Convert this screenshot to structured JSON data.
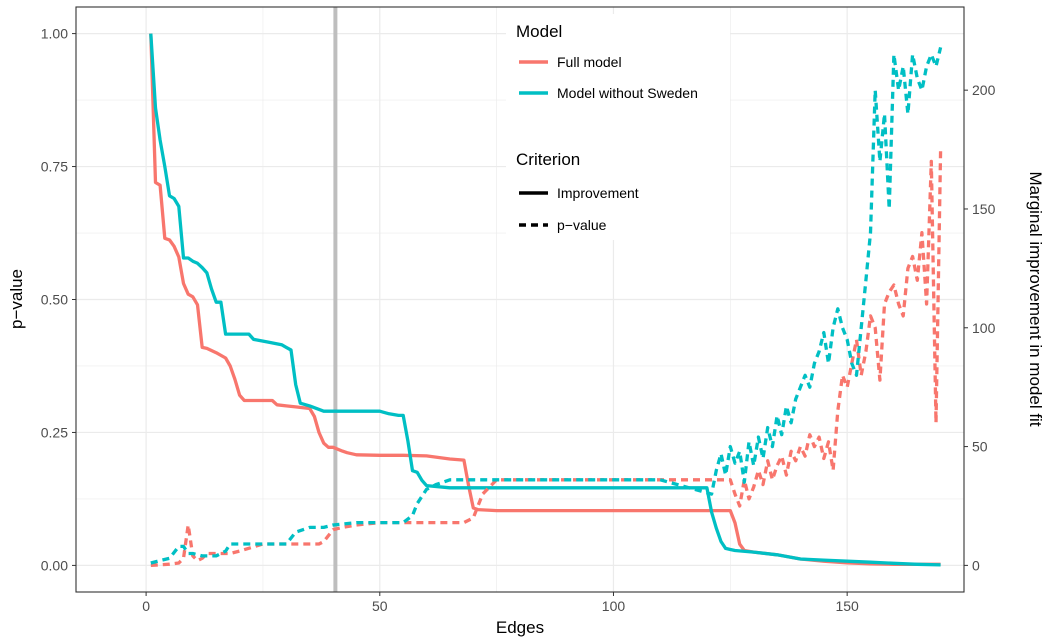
{
  "chart_data": {
    "type": "line",
    "xlabel": "Edges",
    "ylabel_left": "p−value",
    "ylabel_right": "Marginal improvement in model fit",
    "xlim": [
      -15,
      175
    ],
    "ylim_left": [
      -0.05,
      1.05
    ],
    "ylim_right": [
      -11.2,
      235
    ],
    "x_ticks": [
      0,
      50,
      100,
      150
    ],
    "x_tick_labels": [
      "0",
      "50",
      "100",
      "150"
    ],
    "y_left_ticks": [
      0,
      0.25,
      0.5,
      0.75,
      1
    ],
    "y_left_tick_labels": [
      "0.00",
      "0.25",
      "0.50",
      "0.75",
      "1.00"
    ],
    "y_right_ticks": [
      0,
      50,
      100,
      150,
      200
    ],
    "y_right_tick_labels": [
      "0",
      "50",
      "100",
      "150",
      "200"
    ],
    "vline_x": 40.5,
    "vline_color": "#bebebe",
    "grid": true,
    "legend": {
      "position": "top-center",
      "model_title": "Model",
      "criterion_title": "Criterion",
      "criterion_items": [
        {
          "label": "Improvement",
          "dash": "solid"
        },
        {
          "label": "p−value",
          "dash": "dashed"
        }
      ]
    },
    "series": [
      {
        "name": "Full model",
        "criterion": "Improvement",
        "axis": "left",
        "color": "#F8766D",
        "dash": "solid",
        "x": [
          1,
          2,
          3,
          4,
          5,
          6,
          7,
          8,
          9,
          10,
          11,
          12,
          13,
          15,
          17,
          18,
          19,
          20,
          21,
          22,
          24,
          27,
          28,
          30,
          32,
          35,
          36,
          37,
          38,
          39,
          40,
          42,
          43,
          45,
          50,
          55,
          60,
          65,
          68,
          69,
          70,
          71,
          75,
          80,
          85,
          90,
          95,
          100,
          105,
          110,
          115,
          120,
          125,
          126,
          127,
          128,
          130,
          135,
          140,
          145,
          150,
          155,
          160,
          165,
          170
        ],
        "values": [
          1.0,
          0.72,
          0.715,
          0.615,
          0.612,
          0.6,
          0.58,
          0.53,
          0.51,
          0.505,
          0.49,
          0.41,
          0.408,
          0.4,
          0.39,
          0.375,
          0.35,
          0.32,
          0.31,
          0.31,
          0.31,
          0.31,
          0.302,
          0.3,
          0.298,
          0.295,
          0.28,
          0.25,
          0.23,
          0.222,
          0.222,
          0.215,
          0.212,
          0.208,
          0.207,
          0.207,
          0.206,
          0.2,
          0.198,
          0.15,
          0.108,
          0.105,
          0.103,
          0.103,
          0.103,
          0.103,
          0.103,
          0.103,
          0.103,
          0.103,
          0.103,
          0.103,
          0.103,
          0.08,
          0.04,
          0.028,
          0.025,
          0.02,
          0.012,
          0.008,
          0.005,
          0.003,
          0.002,
          0.002,
          0.002
        ]
      },
      {
        "name": "Model without Sweden",
        "criterion": "Improvement",
        "axis": "left",
        "color": "#00BFC4",
        "dash": "solid",
        "x": [
          1,
          2,
          3,
          4,
          5,
          6,
          7,
          8,
          9,
          10,
          11,
          12,
          13,
          14,
          15,
          16,
          17,
          18,
          20,
          22,
          23,
          26,
          29,
          30,
          31,
          32,
          33,
          35,
          38,
          40,
          45,
          48,
          50,
          52,
          54,
          55,
          56,
          57,
          58,
          59,
          60,
          65,
          70,
          75,
          80,
          85,
          90,
          95,
          100,
          105,
          110,
          115,
          120,
          121,
          122,
          123,
          124,
          125,
          126,
          130,
          135,
          140,
          145,
          150,
          155,
          160,
          165,
          170
        ],
        "values": [
          1.0,
          0.86,
          0.8,
          0.75,
          0.695,
          0.69,
          0.675,
          0.578,
          0.578,
          0.572,
          0.568,
          0.56,
          0.55,
          0.52,
          0.495,
          0.495,
          0.435,
          0.435,
          0.435,
          0.435,
          0.425,
          0.42,
          0.415,
          0.41,
          0.405,
          0.34,
          0.305,
          0.3,
          0.29,
          0.29,
          0.29,
          0.29,
          0.29,
          0.285,
          0.282,
          0.282,
          0.235,
          0.178,
          0.175,
          0.16,
          0.15,
          0.146,
          0.146,
          0.146,
          0.146,
          0.146,
          0.146,
          0.146,
          0.146,
          0.146,
          0.146,
          0.146,
          0.146,
          0.1,
          0.07,
          0.045,
          0.032,
          0.03,
          0.028,
          0.025,
          0.02,
          0.012,
          0.01,
          0.008,
          0.006,
          0.004,
          0.002,
          0.001
        ]
      },
      {
        "name": "Full model",
        "criterion": "p−value",
        "axis": "right",
        "color": "#F8766D",
        "dash": "dashed",
        "x": [
          1,
          5,
          7,
          8,
          9,
          10,
          11,
          12,
          13,
          15,
          17,
          18,
          20,
          25,
          30,
          35,
          37,
          38,
          40,
          42,
          45,
          50,
          55,
          60,
          65,
          68,
          70,
          72,
          75,
          80,
          90,
          100,
          110,
          120,
          125,
          126,
          127,
          128,
          129,
          130,
          131,
          132,
          133,
          134,
          135,
          136,
          137,
          138,
          139,
          140,
          141,
          142,
          143,
          144,
          145,
          146,
          147,
          148,
          149,
          150,
          151,
          152,
          153,
          154,
          155,
          156,
          157,
          158,
          159,
          160,
          161,
          162,
          163,
          164,
          165,
          166,
          167,
          168,
          169,
          170
        ],
        "values": [
          0,
          0.5,
          1,
          3,
          17,
          4,
          2,
          3,
          5,
          5,
          5,
          5,
          6,
          9,
          9,
          9,
          9,
          10,
          15,
          16,
          17,
          18,
          18,
          18,
          18,
          18,
          20,
          30,
          36,
          36,
          36,
          36,
          36,
          36,
          36,
          30,
          25,
          36,
          28,
          33,
          40,
          34,
          44,
          36,
          42,
          46,
          38,
          48,
          44,
          50,
          46,
          55,
          50,
          54,
          45,
          52,
          40,
          65,
          80,
          75,
          85,
          95,
          80,
          90,
          105,
          100,
          78,
          110,
          115,
          118,
          110,
          105,
          125,
          130,
          120,
          140,
          110,
          170,
          60,
          175
        ]
      },
      {
        "name": "Model without Sweden",
        "criterion": "p−value",
        "axis": "right",
        "color": "#00BFC4",
        "dash": "dashed",
        "x": [
          1,
          3,
          5,
          7,
          8,
          9,
          10,
          12,
          15,
          17,
          18,
          20,
          25,
          30,
          32,
          35,
          38,
          40,
          45,
          50,
          55,
          57,
          58,
          60,
          62,
          65,
          70,
          80,
          90,
          100,
          110,
          121,
          122,
          123,
          124,
          125,
          126,
          127,
          128,
          129,
          130,
          131,
          132,
          133,
          134,
          135,
          136,
          137,
          138,
          139,
          140,
          141,
          142,
          143,
          144,
          145,
          146,
          147,
          148,
          149,
          150,
          151,
          152,
          153,
          154,
          155,
          156,
          157,
          158,
          159,
          160,
          161,
          162,
          163,
          164,
          165,
          166,
          167,
          168,
          169,
          170
        ],
        "values": [
          1,
          2,
          3,
          8,
          8,
          5,
          5,
          4,
          4,
          6,
          9,
          9,
          9,
          9,
          14,
          16,
          16,
          17,
          18,
          18,
          18,
          21,
          26,
          32,
          34,
          36,
          36,
          36,
          36,
          36,
          36,
          30,
          40,
          47,
          38,
          50,
          43,
          48,
          35,
          52,
          42,
          54,
          45,
          58,
          50,
          63,
          55,
          67,
          60,
          70,
          75,
          80,
          75,
          85,
          90,
          98,
          85,
          100,
          108,
          100,
          95,
          85,
          80,
          100,
          120,
          140,
          200,
          170,
          190,
          150,
          215,
          200,
          210,
          190,
          215,
          205,
          200,
          210,
          215,
          210,
          218
        ]
      }
    ]
  }
}
